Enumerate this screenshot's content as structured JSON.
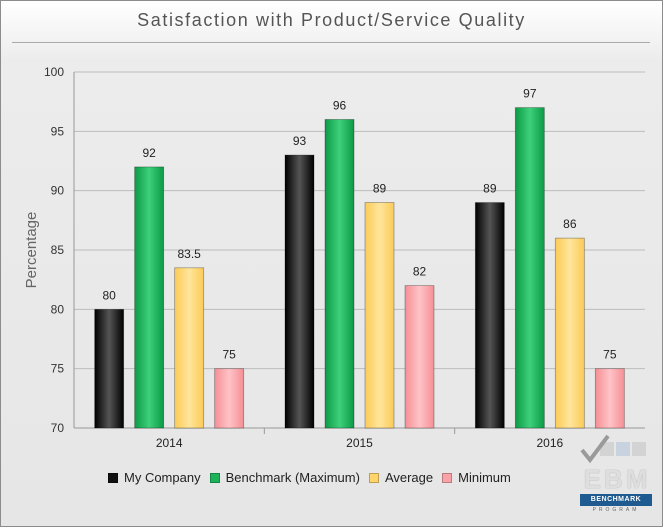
{
  "chart_data": {
    "type": "bar",
    "title": "Satisfaction with Product/Service Quality",
    "ylabel": "Percentage",
    "xlabel": "",
    "categories": [
      "2014",
      "2015",
      "2016"
    ],
    "ylim": [
      70,
      100
    ],
    "yticks": [
      70,
      75,
      80,
      85,
      90,
      95,
      100
    ],
    "grid": true,
    "legend_position": "bottom",
    "series": [
      {
        "name": "My Company",
        "values": [
          80,
          93,
          89
        ],
        "labels": [
          "80",
          "93",
          "89"
        ],
        "color": "#111111"
      },
      {
        "name": "Benchmark (Maximum)",
        "values": [
          92,
          96,
          97
        ],
        "labels": [
          "92",
          "96",
          "97"
        ],
        "color": "#1db35a"
      },
      {
        "name": "Average",
        "values": [
          83.5,
          89,
          86
        ],
        "labels": [
          "83.5",
          "89",
          "86"
        ],
        "color": "#ffd46a"
      },
      {
        "name": "Minimum",
        "values": [
          75,
          82,
          75
        ],
        "labels": [
          "75",
          "82",
          "75"
        ],
        "color": "#f9a3a8"
      }
    ]
  },
  "logo": {
    "text": "EBM",
    "banner": "BENCHMARK",
    "sub": "PROGRAM"
  }
}
